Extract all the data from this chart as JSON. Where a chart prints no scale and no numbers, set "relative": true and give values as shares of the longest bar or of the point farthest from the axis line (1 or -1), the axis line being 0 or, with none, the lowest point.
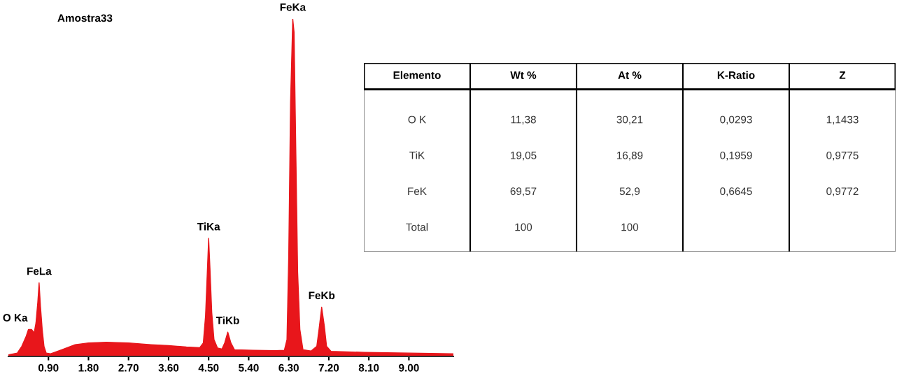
{
  "chart_data": [
    {
      "type": "area",
      "title": "Amostra33",
      "relative": true,
      "color": "#e8161b",
      "tick_labels": "x",
      "x": [
        0.0,
        0.2,
        0.3,
        0.4,
        0.45,
        0.52,
        0.58,
        0.62,
        0.66,
        0.69,
        0.72,
        0.76,
        0.8,
        0.85,
        0.95,
        1.2,
        1.5,
        1.8,
        2.2,
        2.7,
        3.2,
        3.6,
        4.0,
        4.3,
        4.38,
        4.43,
        4.47,
        4.5,
        4.53,
        4.57,
        4.62,
        4.7,
        4.8,
        4.86,
        4.93,
        5.0,
        5.08,
        5.5,
        6.0,
        6.2,
        6.26,
        6.3,
        6.34,
        6.38,
        6.39,
        6.42,
        6.46,
        6.5,
        6.55,
        6.62,
        6.8,
        6.93,
        6.98,
        7.04,
        7.1,
        7.15,
        7.25,
        8.0,
        9.0,
        10.0
      ],
      "values": [
        0.005,
        0.01,
        0.03,
        0.06,
        0.08,
        0.08,
        0.07,
        0.1,
        0.16,
        0.218,
        0.15,
        0.08,
        0.03,
        0.01,
        0.008,
        0.02,
        0.035,
        0.04,
        0.042,
        0.04,
        0.035,
        0.032,
        0.028,
        0.026,
        0.04,
        0.12,
        0.25,
        0.35,
        0.26,
        0.13,
        0.05,
        0.025,
        0.022,
        0.04,
        0.072,
        0.04,
        0.02,
        0.018,
        0.017,
        0.018,
        0.05,
        0.3,
        0.75,
        0.95,
        1.0,
        0.96,
        0.6,
        0.25,
        0.08,
        0.02,
        0.016,
        0.03,
        0.08,
        0.146,
        0.09,
        0.03,
        0.015,
        0.012,
        0.01,
        0.008
      ],
      "xlim": [
        0,
        10
      ],
      "xticks": [
        {
          "value": 0.9,
          "label": "0.90"
        },
        {
          "value": 1.8,
          "label": "1.80"
        },
        {
          "value": 2.7,
          "label": "2.70"
        },
        {
          "value": 3.6,
          "label": "3.60"
        },
        {
          "value": 4.5,
          "label": "4.50"
        },
        {
          "value": 5.4,
          "label": "5.40"
        },
        {
          "value": 6.3,
          "label": "6.30"
        },
        {
          "value": 7.2,
          "label": "7.20"
        },
        {
          "value": 8.1,
          "label": "8.10"
        },
        {
          "value": 9.0,
          "label": "9.00"
        }
      ],
      "annotations": [
        {
          "text": "O Ka",
          "x": 0.52,
          "y": 0.08
        },
        {
          "text": "FeLa",
          "x": 0.69,
          "y": 0.218
        },
        {
          "text": "TiKa",
          "x": 4.5,
          "y": 0.35
        },
        {
          "text": "TiKb",
          "x": 4.93,
          "y": 0.072
        },
        {
          "text": "FeKa",
          "x": 6.39,
          "y": 1.0
        },
        {
          "text": "FeKb",
          "x": 7.04,
          "y": 0.146
        }
      ]
    },
    {
      "type": "other",
      "categories": [
        "Elemento",
        "Wt %",
        "At %",
        "K-Ratio",
        "Z"
      ],
      "cell_labels": [
        [
          "O K",
          "11,38",
          "30,21",
          "0,0293",
          "1,1433"
        ],
        [
          "TiK",
          "19,05",
          "16,89",
          "0,1959",
          "0,9775"
        ],
        [
          "FeK",
          "69,57",
          "52,9",
          "0,6645",
          "0,9772"
        ],
        [
          "Total",
          "100",
          "100",
          null,
          null
        ]
      ]
    }
  ]
}
